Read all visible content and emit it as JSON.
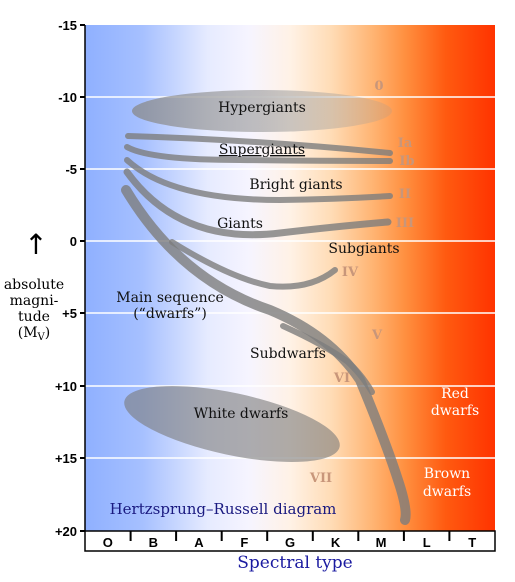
{
  "title": "Hertzsprung–Russell diagram",
  "x_axis": {
    "label": "Spectral type",
    "classes": [
      "O",
      "B",
      "A",
      "F",
      "G",
      "K",
      "M",
      "L",
      "T"
    ]
  },
  "y_axis": {
    "label_lines": [
      "absolute",
      "magni-",
      "tude",
      "(M"
    ],
    "label_subscript": "V",
    "label_close": ")",
    "arrow": "↑",
    "ticks": [
      "-15",
      "-10",
      "-5",
      "0",
      "+5",
      "+10",
      "+15",
      "+20"
    ]
  },
  "regions": {
    "hypergiants": "Hypergiants",
    "supergiants": "Supergiants",
    "bright_giants": "Bright giants",
    "giants": "Giants",
    "subgiants": "Subgiants",
    "main_sequence_1": "Main sequence",
    "main_sequence_2": "(“dwarfs”)",
    "subdwarfs": "Subdwarfs",
    "white_dwarfs": "White dwarfs",
    "red_dwarfs_1": "Red",
    "red_dwarfs_2": "dwarfs",
    "brown_dwarfs_1": "Brown",
    "brown_dwarfs_2": "dwarfs"
  },
  "luminosity_classes": {
    "c0": "0",
    "ia": "Ia",
    "ib": "Ib",
    "ii": "II",
    "iii": "III",
    "iv": "IV",
    "v": "V",
    "vi": "VI",
    "vii": "VII"
  },
  "colors": {
    "blue": "#8fb0ff",
    "white": "#f6f4ff",
    "orange": "#ffae66",
    "red": "#ff3300",
    "band": "#7d7d7d"
  }
}
